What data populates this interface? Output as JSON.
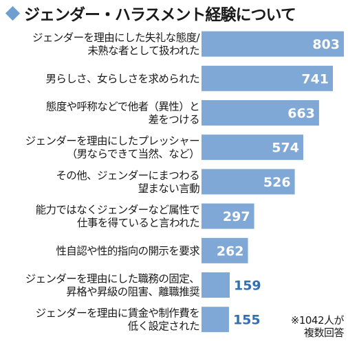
{
  "chart_data": {
    "type": "bar",
    "orientation": "horizontal",
    "title": "ジェンダー・ハラスメント経験について",
    "categories": [
      [
        "ジェンダーを理由にした失礼な態度/",
        "未熟な者として扱われた"
      ],
      [
        "男らしさ、女らしさを求められた"
      ],
      [
        "態度や呼称などで他者（異性）と",
        "差をつける"
      ],
      [
        "ジェンダーを理由にしたプレッシャー",
        "（男ならできて当然、など）"
      ],
      [
        "その他、ジェンダーにまつわる",
        "望まない言動"
      ],
      [
        "能力ではなくジェンダーなど属性で",
        "仕事を得ていると言われた"
      ],
      [
        "性自認や性的指向の開示を要求"
      ],
      [
        "ジェンダーを理由にした職務の固定、",
        "昇格や昇級の阻害、離職推奨"
      ],
      [
        "ジェンダーを理由に賃金や制作費を",
        "低く設定された"
      ]
    ],
    "values": [
      803,
      741,
      663,
      574,
      526,
      297,
      262,
      159,
      155
    ],
    "xlim": [
      0,
      803
    ],
    "grid": false,
    "bar_color": "#7fa8d6",
    "label_inside_color": "#ffffff",
    "label_outside_color": "#2f6fb2",
    "note": [
      "※1042人が",
      "複数回答"
    ]
  }
}
